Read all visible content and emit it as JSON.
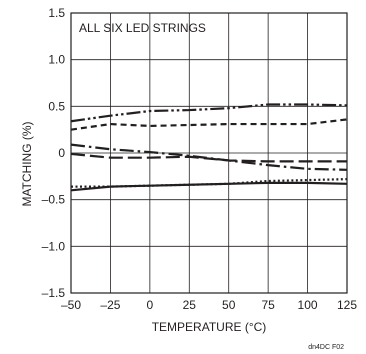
{
  "chart_data": {
    "type": "line",
    "title": "",
    "annotation": "ALL SIX LED STRINGS",
    "xlabel": "TEMPERATURE (°C)",
    "ylabel": "MATCHING (%)",
    "xlim": [
      -50,
      125
    ],
    "ylim": [
      -1.5,
      1.5
    ],
    "x_ticks": [
      -50,
      -25,
      0,
      25,
      50,
      75,
      100,
      125
    ],
    "x_tick_labels": [
      "–50",
      "–25",
      "0",
      "25",
      "50",
      "75",
      "100",
      "125"
    ],
    "y_ticks": [
      1.5,
      1.0,
      0.5,
      0,
      -0.5,
      -1.0,
      -1.5
    ],
    "y_tick_labels": [
      "1.5",
      "1.0",
      "0.5",
      "0",
      "–0.5",
      "–1.0",
      "–1.5"
    ],
    "grid": true,
    "series": [
      {
        "style": "long-dash-dot-dot",
        "color": "#231f20",
        "x": [
          -50,
          -25,
          0,
          25,
          50,
          75,
          100,
          125
        ],
        "y": [
          0.34,
          0.4,
          0.45,
          0.46,
          0.48,
          0.52,
          0.52,
          0.51
        ]
      },
      {
        "style": "short-dash",
        "color": "#231f20",
        "x": [
          -50,
          -25,
          0,
          25,
          50,
          75,
          100,
          125
        ],
        "y": [
          0.25,
          0.31,
          0.29,
          0.3,
          0.31,
          0.31,
          0.31,
          0.36
        ]
      },
      {
        "style": "long-dash-dot",
        "color": "#231f20",
        "x": [
          -50,
          -25,
          0,
          25,
          50,
          75,
          100,
          125
        ],
        "y": [
          0.09,
          0.04,
          0.01,
          -0.03,
          -0.08,
          -0.13,
          -0.17,
          -0.18
        ]
      },
      {
        "style": "long-dash",
        "color": "#231f20",
        "x": [
          -50,
          -25,
          0,
          25,
          50,
          75,
          100,
          125
        ],
        "y": [
          -0.01,
          -0.05,
          -0.05,
          -0.04,
          -0.08,
          -0.09,
          -0.09,
          -0.09
        ]
      },
      {
        "style": "dotted",
        "color": "#231f20",
        "x": [
          -50,
          -25,
          0,
          25,
          50,
          75,
          100,
          125
        ],
        "y": [
          -0.36,
          -0.36,
          -0.35,
          -0.34,
          -0.33,
          -0.3,
          -0.29,
          -0.28
        ]
      },
      {
        "style": "solid",
        "color": "#231f20",
        "x": [
          -50,
          -25,
          0,
          25,
          50,
          75,
          100,
          125
        ],
        "y": [
          -0.4,
          -0.36,
          -0.35,
          -0.34,
          -0.33,
          -0.32,
          -0.32,
          -0.33
        ]
      }
    ]
  },
  "figure_id": "dn4DC F02"
}
